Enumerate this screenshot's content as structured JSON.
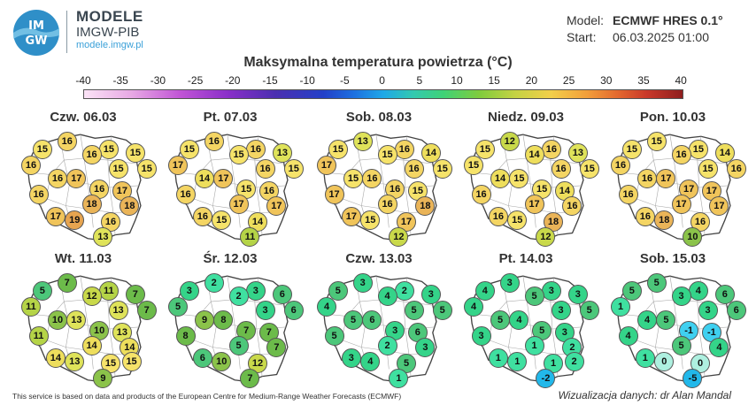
{
  "header": {
    "logo_text": "IMGW",
    "brand_line1": "MODELE",
    "brand_line2": "IMGW-PIB",
    "brand_url": "modele.imgw.pl",
    "model_label": "Model:",
    "model_value": "ECMWF HRES 0.1°",
    "start_label": "Start:",
    "start_value": "06.03.2025 01:00"
  },
  "title": "Maksymalna temperatura powietrza (°C)",
  "scale": {
    "ticks": [
      "-40",
      "-35",
      "-30",
      "-25",
      "-20",
      "-15",
      "-10",
      "-5",
      "0",
      "5",
      "10",
      "15",
      "20",
      "25",
      "30",
      "35",
      "40"
    ]
  },
  "maps": [
    {
      "day": "Czw. 06.03",
      "values": [
        15,
        16,
        15,
        16,
        15,
        16,
        15,
        15,
        16,
        17,
        16,
        16,
        17,
        18,
        18,
        17,
        19,
        16,
        13
      ]
    },
    {
      "day": "Pt. 07.03",
      "values": [
        15,
        16,
        16,
        15,
        13,
        17,
        16,
        15,
        14,
        17,
        16,
        15,
        16,
        17,
        17,
        16,
        15,
        14,
        11
      ]
    },
    {
      "day": "Sob. 08.03",
      "values": [
        15,
        13,
        16,
        15,
        14,
        17,
        16,
        15,
        15,
        16,
        17,
        16,
        15,
        16,
        18,
        17,
        15,
        17,
        12
      ]
    },
    {
      "day": "Niedz. 09.03",
      "values": [
        15,
        12,
        16,
        14,
        13,
        15,
        16,
        15,
        14,
        15,
        16,
        15,
        14,
        17,
        16,
        16,
        15,
        18,
        12
      ]
    },
    {
      "day": "Pon. 10.03",
      "values": [
        15,
        15,
        15,
        16,
        14,
        16,
        15,
        16,
        16,
        17,
        16,
        17,
        17,
        17,
        17,
        16,
        18,
        16,
        10
      ]
    },
    {
      "day": "Wt. 11.03",
      "values": [
        5,
        7,
        11,
        12,
        7,
        11,
        13,
        7,
        10,
        13,
        11,
        10,
        13,
        14,
        14,
        14,
        13,
        15,
        15,
        9
      ]
    },
    {
      "day": "Śr. 12.03",
      "values": [
        3,
        2,
        3,
        2,
        6,
        5,
        3,
        6,
        9,
        8,
        8,
        7,
        7,
        5,
        7,
        6,
        10,
        12,
        7
      ]
    },
    {
      "day": "Czw. 13.03",
      "values": [
        5,
        3,
        2,
        4,
        3,
        4,
        5,
        5,
        5,
        6,
        5,
        3,
        6,
        2,
        3,
        3,
        4,
        5,
        1
      ]
    },
    {
      "day": "Pt. 14.03",
      "values": [
        4,
        3,
        3,
        5,
        3,
        4,
        3,
        5,
        5,
        4,
        3,
        5,
        3,
        1,
        2,
        1,
        1,
        1,
        2,
        -2
      ]
    },
    {
      "day": "Sob. 15.03",
      "values": [
        5,
        5,
        4,
        3,
        6,
        1,
        3,
        6,
        4,
        5,
        4,
        -1,
        -1,
        5,
        4,
        1,
        0,
        0,
        -5
      ]
    }
  ],
  "footer": {
    "left": "This service is based on data and products of the European Centre for Medium-Range Weather Forecasts (ECMWF)",
    "right": "Wizualizacja danych: dr Alan Mandal"
  }
}
